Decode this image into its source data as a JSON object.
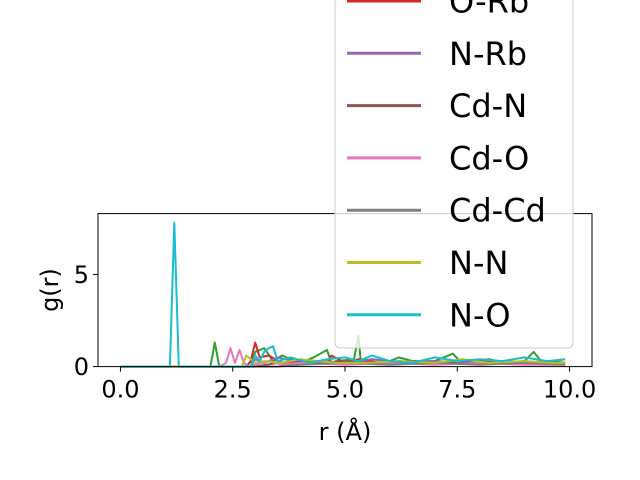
{
  "chart_data": {
    "type": "line",
    "xlabel": "r (Å)",
    "ylabel": "g(r)",
    "xlim": [
      -0.5,
      10.5
    ],
    "ylim": [
      0,
      8.3
    ],
    "x_ticks": [
      "0.0",
      "2.5",
      "5.0",
      "7.5",
      "10.0"
    ],
    "x_tick_values": [
      0,
      2.5,
      5,
      7.5,
      10
    ],
    "y_ticks": [
      "0",
      "5"
    ],
    "y_tick_values": [
      0,
      5
    ],
    "grid": false,
    "legend_placement": "upper-right, overflowing above axes",
    "series": [
      {
        "name": "O-Rb",
        "color": "#d62728",
        "x": [
          0,
          2.8,
          2.9,
          3.0,
          3.1,
          3.3,
          3.6,
          4.2,
          4.6,
          4.7,
          5.0,
          5.3,
          5.8,
          6.2,
          6.8,
          7.4,
          8.0,
          8.6,
          9.2,
          9.9
        ],
        "y": [
          0,
          0,
          0.3,
          1.3,
          0.5,
          0.6,
          0.2,
          0.3,
          0.2,
          0.6,
          0.2,
          0.4,
          0.2,
          0.3,
          0.2,
          0.3,
          0.2,
          0.3,
          0.2,
          0.2
        ]
      },
      {
        "name": "N-Rb",
        "color": "#9467bd",
        "x": [
          0,
          2.9,
          3.0,
          3.2,
          3.5,
          4.0,
          4.5,
          5.0,
          5.6,
          6.3,
          7.0,
          7.8,
          8.5,
          9.2,
          9.9
        ],
        "y": [
          0,
          0,
          0.4,
          0.2,
          0.5,
          0.2,
          0.3,
          0.2,
          0.4,
          0.2,
          0.3,
          0.2,
          0.3,
          0.2,
          0.2
        ]
      },
      {
        "name": "Cd-N",
        "color": "#8c564b",
        "x": [
          0,
          3.0,
          3.5,
          4.0,
          4.5,
          5.0,
          5.5,
          6.0,
          6.5,
          7.0,
          7.5,
          8.0,
          8.5,
          9.0,
          9.5,
          9.9
        ],
        "y": [
          0,
          0,
          0.2,
          0.3,
          0.2,
          0.3,
          0.2,
          0.2,
          0.3,
          0.2,
          0.2,
          0.3,
          0.2,
          0.2,
          0.3,
          0.2
        ]
      },
      {
        "name": "Cd-O",
        "color": "#e377c2",
        "x": [
          0,
          2.2,
          2.35,
          2.45,
          2.55,
          2.65,
          2.75,
          2.85,
          3.0,
          3.3,
          3.6,
          4.0,
          5.0,
          6.0,
          7.0,
          8.0,
          9.0,
          9.9
        ],
        "y": [
          0,
          0,
          0.2,
          1.0,
          0.2,
          0.9,
          0.2,
          0,
          0.1,
          0.3,
          0.1,
          0.2,
          0.1,
          0.2,
          0.1,
          0.2,
          0.1,
          0.1
        ]
      },
      {
        "name": "Cd-Cd",
        "color": "#7f7f7f",
        "x": [
          0,
          3.5,
          4.0,
          5.0,
          6.0,
          7.0,
          8.0,
          9.0,
          9.9
        ],
        "y": [
          0,
          0,
          0.1,
          0.2,
          0.1,
          0.2,
          0.1,
          0.2,
          0.1
        ]
      },
      {
        "name": "N-N",
        "color": "#bcbd22",
        "x": [
          0,
          2.7,
          2.8,
          3.0,
          3.2,
          3.6,
          4.0,
          4.8,
          5.5,
          6.2,
          7.0,
          7.6,
          8.2,
          9.0,
          9.6,
          9.9
        ],
        "y": [
          0,
          0,
          0.6,
          0.2,
          0.3,
          0.2,
          0.4,
          0.2,
          0.2,
          0.3,
          0.2,
          0.4,
          0.2,
          0.3,
          0.2,
          0.2
        ]
      },
      {
        "name": "N-O",
        "color": "#17becf",
        "x": [
          0,
          1.1,
          1.2,
          1.3,
          2.9,
          3.0,
          3.1,
          3.2,
          3.3,
          3.4,
          3.5,
          3.8,
          4.2,
          4.6,
          5.0,
          5.3,
          5.6,
          6.0,
          6.5,
          7.0,
          7.5,
          8.0,
          8.5,
          9.0,
          9.5,
          9.9
        ],
        "y": [
          0,
          0,
          7.8,
          0,
          0,
          0.6,
          0.3,
          0.8,
          1.0,
          1.1,
          0.3,
          0.5,
          0.2,
          0.4,
          0.5,
          0.3,
          0.6,
          0.3,
          0.2,
          0.5,
          0.3,
          0.4,
          0.3,
          0.5,
          0.3,
          0.4
        ]
      },
      {
        "name": "",
        "color": "#2ca02c",
        "x": [
          0,
          2.0,
          2.05,
          2.1,
          2.2,
          2.9,
          3.0,
          3.2,
          3.4,
          3.6,
          4.0,
          4.3,
          4.6,
          4.7,
          4.8,
          5.2,
          5.3,
          5.35,
          5.4,
          5.6,
          6.0,
          6.2,
          6.5,
          7.0,
          7.4,
          7.6,
          7.8,
          8.2,
          8.6,
          9.0,
          9.2,
          9.4,
          9.6,
          9.9
        ],
        "y": [
          0,
          0,
          0.6,
          1.3,
          0,
          0,
          0.8,
          1.0,
          0.3,
          0.6,
          0.2,
          0.5,
          0.9,
          0.2,
          0.3,
          0.4,
          1.7,
          0.3,
          0.2,
          0.4,
          0.3,
          0.5,
          0.3,
          0.3,
          0.7,
          0.2,
          0.3,
          0.4,
          0.2,
          0.3,
          0.8,
          0.2,
          0.3,
          0.4
        ]
      }
    ],
    "legend_entries": [
      "O-Rb",
      "N-Rb",
      "Cd-N",
      "Cd-O",
      "Cd-Cd",
      "N-N",
      "N-O"
    ]
  }
}
